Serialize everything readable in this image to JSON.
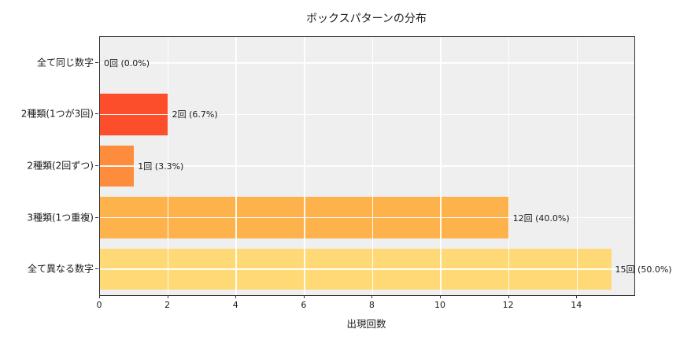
{
  "chart_data": {
    "type": "bar",
    "orientation": "horizontal",
    "title": "ボックスパターンの分布",
    "xlabel": "出現回数",
    "ylabel": "",
    "categories": [
      "全て同じ数字",
      "2種類(1つが3回)",
      "2種類(2回ずつ)",
      "3種類(1つ重複)",
      "全て異なる数字"
    ],
    "values": [
      0,
      2,
      1,
      12,
      15
    ],
    "bar_labels": [
      "0回 (0.0%)",
      "2回 (6.7%)",
      "1回 (3.3%)",
      "12回 (40.0%)",
      "15回 (50.0%)"
    ],
    "bar_colors": [
      "#e31a1c",
      "#fc4e2a",
      "#fd8d3c",
      "#feb24c",
      "#fed976"
    ],
    "xlim": [
      0,
      15.68
    ],
    "x_tick_values": [
      0,
      2,
      4,
      6,
      8,
      10,
      12,
      14
    ],
    "x_tick_labels": [
      "0",
      "2",
      "4",
      "6",
      "8",
      "10",
      "12",
      "14"
    ],
    "grid": true,
    "grid_color": "#ffffff",
    "plot_bg": "#efefef",
    "figure_bg": "#ffffff",
    "spine_color": "#333333",
    "text_color": "#1a1a1a",
    "bar_height_ratio": 0.8
  }
}
